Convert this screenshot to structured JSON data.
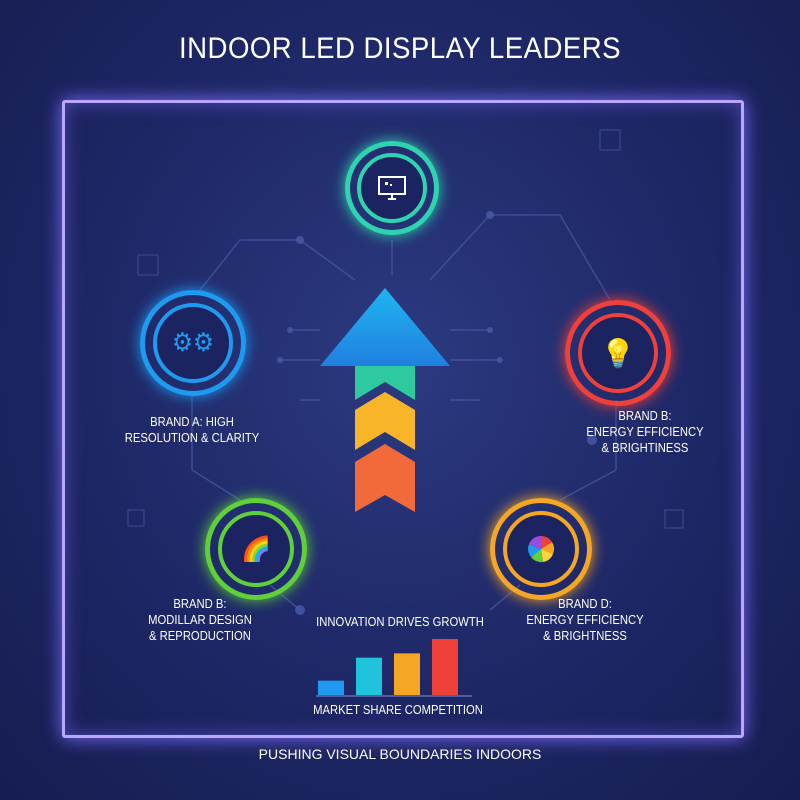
{
  "title": "INDOOR LED DISPLAY LEADERS",
  "brands": [
    {
      "label_line1": "BRAND A: HIGH",
      "label_line2": "RESOLUTION & CLARITY",
      "icon": "gears-icon",
      "color": "#1e9bf0"
    },
    {
      "label_line1": "BRAND B:",
      "label_line2": "ENERGY EFFICIENCY",
      "label_line3": "& BRIGHTINESS",
      "icon": "lightbulb-icon",
      "color": "#f0403a"
    },
    {
      "label_line1": "BRAND B:",
      "label_line2": "MODILLAR DESIGN",
      "label_line3": "& REPRODUCTION",
      "icon": "rainbow-icon",
      "color": "#5fd03a"
    },
    {
      "label_line1": "BRAND D:",
      "label_line2": "ENERGY EFFICIENCY",
      "label_line3": "& BRIGHTNESS",
      "icon": "color-wheel-icon",
      "color": "#f5a623"
    }
  ],
  "top_icon": {
    "icon": "monitor-icon",
    "color": "#2ed3b0"
  },
  "center": {
    "caption": "INNOVATION DRIVES GROWTH",
    "icon": "upward-arrow-icon"
  },
  "market_chart": {
    "caption": "MARKET SHARE COMPETITION",
    "relative_values": [
      1,
      2.6,
      2.9,
      3.9
    ],
    "colors": [
      "#1e9bf0",
      "#1fc3dc",
      "#f5a623",
      "#f0403a"
    ]
  },
  "footer": "PUSHING VISUAL BOUNDARIES INDOORS"
}
